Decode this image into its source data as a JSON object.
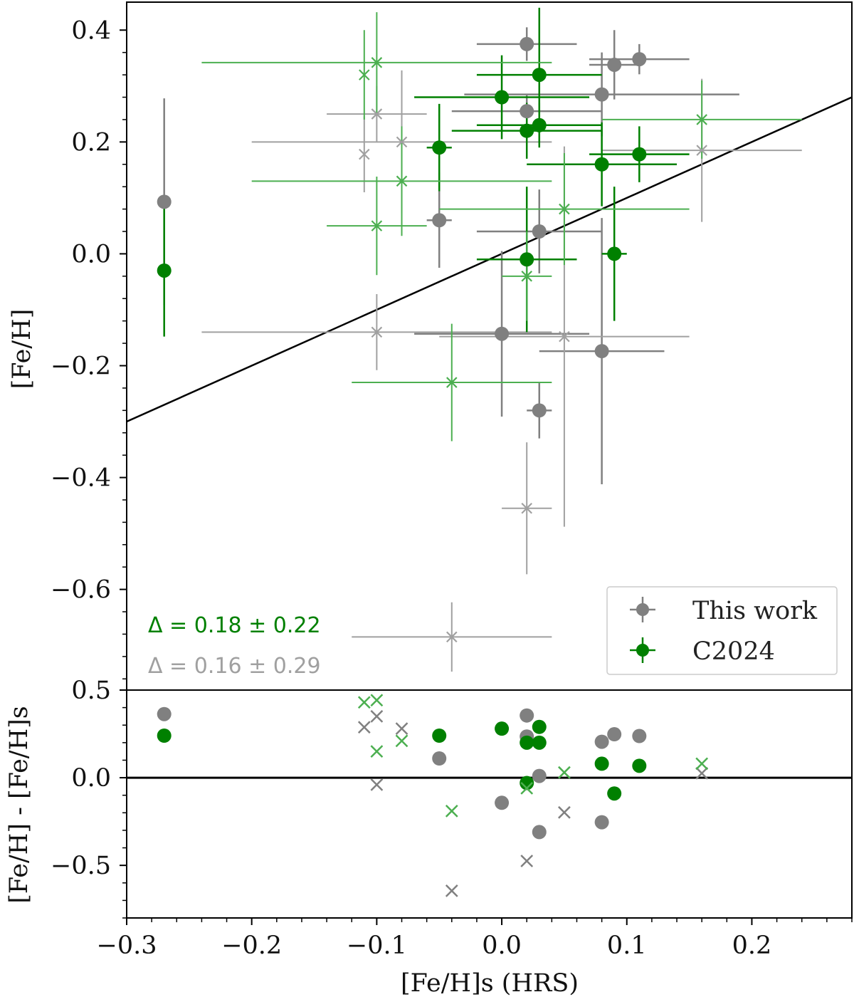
{
  "chart_data": [
    {
      "type": "scatter",
      "panel": "top",
      "ylabel": "[Fe/H]",
      "xlim": [
        -0.3,
        0.28
      ],
      "ylim": [
        -0.78,
        0.45
      ],
      "yticks": [
        0.4,
        0.2,
        0.0,
        -0.2,
        -0.4,
        -0.6
      ],
      "ytick_labels": [
        "0.4",
        "0.2",
        "0.0",
        "−0.2",
        "−0.4",
        "−0.6"
      ],
      "one_to_one_line": true,
      "legend": {
        "position": "lower-right",
        "entries": [
          {
            "label": "This work",
            "color": "#808080"
          },
          {
            "label": "C2024",
            "color": "#008000"
          }
        ]
      },
      "annotations": [
        {
          "text": "Δ = 0.18 ± 0.22",
          "color": "#008000"
        },
        {
          "text": "Δ = 0.16 ± 0.29",
          "color": "#a0a0a0"
        }
      ],
      "series": [
        {
          "name": "This work (circles)",
          "marker": "circle",
          "color": "#808080",
          "points": [
            {
              "x": -0.27,
              "y": 0.093,
              "xerr": 0.0,
              "yerr": 0.185
            },
            {
              "x": -0.05,
              "y": 0.06,
              "xerr": 0.01,
              "yerr": 0.085
            },
            {
              "x": 0.02,
              "y": 0.375,
              "xerr": 0.04,
              "yerr": 0.03
            },
            {
              "x": 0.02,
              "y": 0.255,
              "xerr": 0.06,
              "yerr": 0.03
            },
            {
              "x": 0.03,
              "y": 0.04,
              "xerr": 0.05,
              "yerr": 0.075
            },
            {
              "x": 0.0,
              "y": -0.143,
              "xerr": 0.07,
              "yerr": 0.148
            },
            {
              "x": 0.03,
              "y": -0.28,
              "xerr": 0.01,
              "yerr": 0.05
            },
            {
              "x": 0.08,
              "y": 0.285,
              "xerr": 0.11,
              "yerr": 0.075
            },
            {
              "x": 0.09,
              "y": 0.338,
              "xerr": 0.02,
              "yerr": 0.062
            },
            {
              "x": 0.11,
              "y": 0.348,
              "xerr": 0.04,
              "yerr": 0.027
            },
            {
              "x": 0.08,
              "y": -0.174,
              "xerr": 0.05,
              "yerr": 0.238
            }
          ]
        },
        {
          "name": "This work (crosses)",
          "marker": "x",
          "color": "#a0a0a0",
          "points": [
            {
              "x": -0.11,
              "y": 0.178,
              "xerr": 0.0,
              "yerr": 0.068
            },
            {
              "x": -0.1,
              "y": 0.25,
              "xerr": 0.04,
              "yerr": 0.05
            },
            {
              "x": -0.08,
              "y": 0.2,
              "xerr": 0.12,
              "yerr": 0.128
            },
            {
              "x": -0.1,
              "y": -0.14,
              "xerr": 0.14,
              "yerr": 0.068
            },
            {
              "x": 0.05,
              "y": -0.148,
              "xerr": 0.1,
              "yerr": 0.34
            },
            {
              "x": 0.02,
              "y": -0.455,
              "xerr": 0.02,
              "yerr": 0.118
            },
            {
              "x": -0.04,
              "y": -0.685,
              "xerr": 0.08,
              "yerr": 0.062
            },
            {
              "x": 0.16,
              "y": 0.185,
              "xerr": 0.08,
              "yerr": 0.128
            }
          ]
        },
        {
          "name": "C2024 (circles)",
          "marker": "circle",
          "color": "#008000",
          "points": [
            {
              "x": -0.27,
              "y": -0.03,
              "xerr": 0.0,
              "yerr": 0.118
            },
            {
              "x": -0.05,
              "y": 0.19,
              "xerr": 0.01,
              "yerr": 0.078
            },
            {
              "x": 0.0,
              "y": 0.28,
              "xerr": 0.07,
              "yerr": 0.075
            },
            {
              "x": 0.03,
              "y": 0.32,
              "xerr": 0.05,
              "yerr": 0.12
            },
            {
              "x": 0.02,
              "y": 0.22,
              "xerr": 0.06,
              "yerr": 0.05
            },
            {
              "x": 0.03,
              "y": 0.23,
              "xerr": 0.05,
              "yerr": 0.04
            },
            {
              "x": 0.08,
              "y": 0.16,
              "xerr": 0.06,
              "yerr": 0.075
            },
            {
              "x": 0.11,
              "y": 0.178,
              "xerr": 0.04,
              "yerr": 0.05
            },
            {
              "x": 0.09,
              "y": 0.0,
              "xerr": 0.01,
              "yerr": 0.12
            },
            {
              "x": 0.02,
              "y": -0.01,
              "xerr": 0.04,
              "yerr": 0.13
            }
          ]
        },
        {
          "name": "C2024 (crosses)",
          "marker": "x",
          "color": "#4caf50",
          "points": [
            {
              "x": -0.11,
              "y": 0.32,
              "xerr": 0.0,
              "yerr": 0.08
            },
            {
              "x": -0.1,
              "y": 0.342,
              "xerr": 0.14,
              "yerr": 0.09
            },
            {
              "x": -0.08,
              "y": 0.13,
              "xerr": 0.12,
              "yerr": 0.098
            },
            {
              "x": -0.1,
              "y": 0.05,
              "xerr": 0.04,
              "yerr": 0.088
            },
            {
              "x": 0.05,
              "y": 0.08,
              "xerr": 0.1,
              "yerr": 0.1
            },
            {
              "x": 0.16,
              "y": 0.24,
              "xerr": 0.08,
              "yerr": 0.07
            },
            {
              "x": 0.02,
              "y": -0.04,
              "xerr": 0.02,
              "yerr": 0.08
            },
            {
              "x": -0.04,
              "y": -0.23,
              "xerr": 0.08,
              "yerr": 0.105
            }
          ]
        }
      ]
    },
    {
      "type": "scatter",
      "panel": "bottom",
      "xlabel": "[Fe/H]s (HRS)",
      "ylabel": "[Fe/H] - [Fe/H]s",
      "xlim": [
        -0.3,
        0.28
      ],
      "ylim": [
        -0.8,
        0.5
      ],
      "yticks": [
        0.5,
        0.0,
        -0.5
      ],
      "ytick_labels": [
        "0.5",
        "0.0",
        "−0.5"
      ],
      "xticks": [
        -0.3,
        -0.2,
        -0.1,
        0.0,
        0.1,
        0.2
      ],
      "xtick_labels": [
        "−0.3",
        "−0.2",
        "−0.1",
        "0.0",
        "0.1",
        "0.2"
      ],
      "reference_lines": [
        0.0,
        0.5
      ],
      "series": [
        {
          "name": "This work (circles)",
          "marker": "circle",
          "color": "#808080",
          "points": [
            {
              "x": -0.27,
              "y": 0.363
            },
            {
              "x": -0.05,
              "y": 0.11
            },
            {
              "x": 0.02,
              "y": 0.355
            },
            {
              "x": 0.02,
              "y": 0.235
            },
            {
              "x": 0.03,
              "y": 0.01
            },
            {
              "x": 0.0,
              "y": -0.143
            },
            {
              "x": 0.03,
              "y": -0.31
            },
            {
              "x": 0.08,
              "y": 0.205
            },
            {
              "x": 0.09,
              "y": 0.248
            },
            {
              "x": 0.11,
              "y": 0.238
            },
            {
              "x": 0.08,
              "y": -0.254
            }
          ]
        },
        {
          "name": "This work (crosses)",
          "marker": "x",
          "color": "#808080",
          "points": [
            {
              "x": -0.11,
              "y": 0.288
            },
            {
              "x": -0.1,
              "y": 0.35
            },
            {
              "x": -0.08,
              "y": 0.28
            },
            {
              "x": -0.1,
              "y": -0.04
            },
            {
              "x": 0.05,
              "y": -0.198
            },
            {
              "x": 0.02,
              "y": -0.475
            },
            {
              "x": -0.04,
              "y": -0.645
            },
            {
              "x": 0.16,
              "y": 0.025
            }
          ]
        },
        {
          "name": "C2024 (circles)",
          "marker": "circle",
          "color": "#008000",
          "points": [
            {
              "x": -0.27,
              "y": 0.24
            },
            {
              "x": -0.05,
              "y": 0.24
            },
            {
              "x": 0.0,
              "y": 0.28
            },
            {
              "x": 0.03,
              "y": 0.29
            },
            {
              "x": 0.02,
              "y": 0.2
            },
            {
              "x": 0.03,
              "y": 0.2
            },
            {
              "x": 0.08,
              "y": 0.08
            },
            {
              "x": 0.11,
              "y": 0.068
            },
            {
              "x": 0.09,
              "y": -0.09
            },
            {
              "x": 0.02,
              "y": -0.03
            }
          ]
        },
        {
          "name": "C2024 (crosses)",
          "marker": "x",
          "color": "#4caf50",
          "points": [
            {
              "x": -0.11,
              "y": 0.43
            },
            {
              "x": -0.1,
              "y": 0.442
            },
            {
              "x": -0.08,
              "y": 0.21
            },
            {
              "x": -0.1,
              "y": 0.15
            },
            {
              "x": 0.05,
              "y": 0.03
            },
            {
              "x": 0.16,
              "y": 0.08
            },
            {
              "x": 0.02,
              "y": -0.06
            },
            {
              "x": -0.04,
              "y": -0.19
            }
          ]
        }
      ]
    }
  ]
}
